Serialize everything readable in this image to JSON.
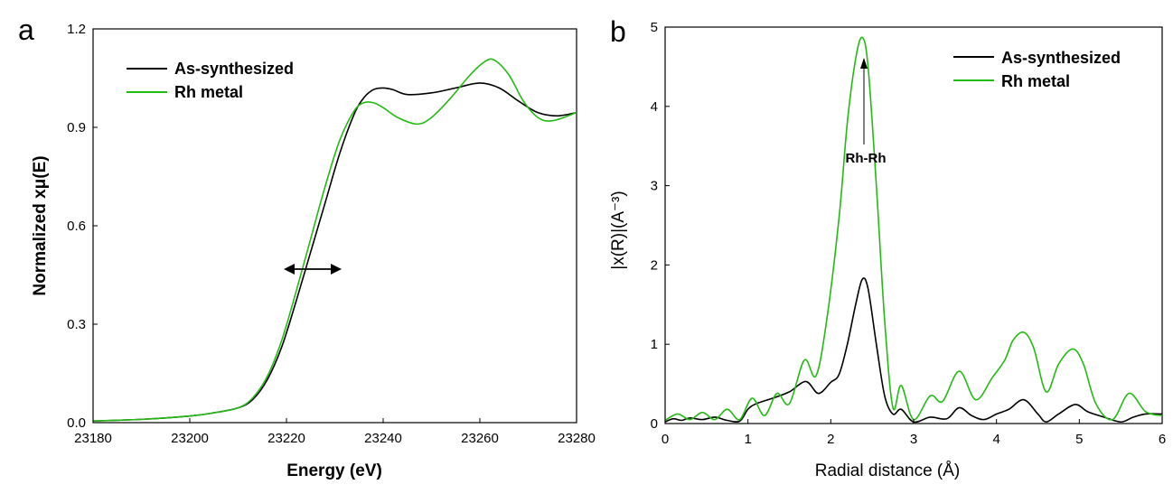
{
  "panels": [
    {
      "panel_label": "a",
      "xlabel": "Energy (eV)",
      "ylabel": "Normalized xμ(E)",
      "x_ticks": [
        "23180",
        "23200",
        "23220",
        "23240",
        "23260",
        "23280"
      ],
      "y_ticks": [
        "0.0",
        "0.3",
        "0.6",
        "0.9",
        "1.2"
      ],
      "legend": [
        "As-synthesized",
        "Rh metal"
      ]
    },
    {
      "panel_label": "b",
      "xlabel": "Radial distance (Å)",
      "ylabel": "|x(R)|(A⁻³)",
      "x_ticks": [
        "0",
        "1",
        "2",
        "3",
        "4",
        "5",
        "6"
      ],
      "y_ticks": [
        "0",
        "1",
        "2",
        "3",
        "4",
        "5"
      ],
      "legend": [
        "As-synthesized",
        "Rh metal"
      ],
      "annotation": "Rh-Rh"
    }
  ],
  "colors": {
    "as_synthesized": "#000000",
    "rh_metal": "#22bb11"
  },
  "chart_data": [
    {
      "type": "line",
      "title": "",
      "xlabel": "Energy (eV)",
      "ylabel": "Normalized xμ(E)",
      "xlim": [
        23180,
        23280
      ],
      "ylim": [
        0,
        1.2
      ],
      "legend_position": "top-left",
      "annotation": "double-headed arrow near 23226 eV, 0.47",
      "series": [
        {
          "name": "As-synthesized",
          "x": [
            23180,
            23190,
            23200,
            23205,
            23210,
            23213,
            23216,
            23219,
            23222,
            23225,
            23228,
            23231,
            23234,
            23236,
            23238,
            23240,
            23242,
            23245,
            23250,
            23255,
            23260,
            23264,
            23268,
            23272,
            23276,
            23280
          ],
          "y": [
            0.005,
            0.01,
            0.02,
            0.03,
            0.045,
            0.07,
            0.13,
            0.23,
            0.37,
            0.52,
            0.67,
            0.82,
            0.94,
            0.99,
            1.015,
            1.02,
            1.015,
            1.0,
            1.005,
            1.02,
            1.035,
            1.02,
            0.98,
            0.945,
            0.935,
            0.945
          ]
        },
        {
          "name": "Rh metal",
          "x": [
            23180,
            23190,
            23200,
            23205,
            23210,
            23213,
            23216,
            23219,
            23222,
            23225,
            23228,
            23231,
            23234,
            23236,
            23238,
            23240,
            23243,
            23247,
            23250,
            23254,
            23258,
            23261,
            23263,
            23266,
            23269,
            23272,
            23275,
            23280
          ],
          "y": [
            0.005,
            0.01,
            0.02,
            0.03,
            0.045,
            0.075,
            0.14,
            0.25,
            0.4,
            0.56,
            0.72,
            0.86,
            0.95,
            0.975,
            0.975,
            0.96,
            0.93,
            0.91,
            0.93,
            0.99,
            1.06,
            1.1,
            1.105,
            1.06,
            0.98,
            0.93,
            0.92,
            0.945
          ]
        }
      ]
    },
    {
      "type": "line",
      "title": "",
      "xlabel": "Radial distance (Å)",
      "ylabel": "|x(R)|(A⁻³)",
      "xlim": [
        0,
        6
      ],
      "ylim": [
        0,
        5
      ],
      "legend_position": "top-right",
      "annotation": "Rh-Rh (arrow pointing to peak at 2.38 Å)",
      "series": [
        {
          "name": "As-synthesized",
          "x": [
            0,
            0.1,
            0.2,
            0.3,
            0.45,
            0.6,
            0.75,
            0.9,
            1.0,
            1.1,
            1.3,
            1.5,
            1.7,
            1.85,
            2.0,
            2.1,
            2.2,
            2.3,
            2.38,
            2.45,
            2.55,
            2.65,
            2.75,
            2.85,
            3.0,
            3.2,
            3.4,
            3.55,
            3.7,
            3.85,
            4.0,
            4.15,
            4.33,
            4.5,
            4.6,
            4.75,
            4.95,
            5.1,
            5.3,
            5.5,
            5.65,
            5.8,
            6.0
          ],
          "y": [
            0.02,
            0.06,
            0.04,
            0.07,
            0.05,
            0.08,
            0.04,
            0.03,
            0.18,
            0.25,
            0.32,
            0.4,
            0.53,
            0.38,
            0.52,
            0.62,
            1.0,
            1.5,
            1.82,
            1.7,
            1.0,
            0.35,
            0.12,
            0.18,
            0.02,
            0.08,
            0.06,
            0.2,
            0.1,
            0.05,
            0.12,
            0.18,
            0.3,
            0.12,
            0.02,
            0.12,
            0.24,
            0.15,
            0.08,
            0.02,
            0.08,
            0.12,
            0.12
          ]
        },
        {
          "name": "Rh metal",
          "x": [
            0,
            0.15,
            0.3,
            0.45,
            0.6,
            0.75,
            0.9,
            1.05,
            1.2,
            1.35,
            1.5,
            1.68,
            1.82,
            1.95,
            2.1,
            2.2,
            2.3,
            2.38,
            2.45,
            2.55,
            2.65,
            2.75,
            2.85,
            3.0,
            3.2,
            3.35,
            3.55,
            3.75,
            3.95,
            4.1,
            4.2,
            4.33,
            4.45,
            4.6,
            4.75,
            4.92,
            5.05,
            5.2,
            5.4,
            5.6,
            5.8,
            6.0
          ],
          "y": [
            0.04,
            0.12,
            0.05,
            0.14,
            0.05,
            0.18,
            0.05,
            0.32,
            0.1,
            0.38,
            0.25,
            0.8,
            0.6,
            1.3,
            2.6,
            3.8,
            4.6,
            4.87,
            4.5,
            3.0,
            1.3,
            0.2,
            0.48,
            0.05,
            0.35,
            0.28,
            0.66,
            0.3,
            0.58,
            0.8,
            1.05,
            1.15,
            0.95,
            0.4,
            0.75,
            0.94,
            0.75,
            0.25,
            0.05,
            0.38,
            0.15,
            0.1
          ]
        }
      ]
    }
  ]
}
